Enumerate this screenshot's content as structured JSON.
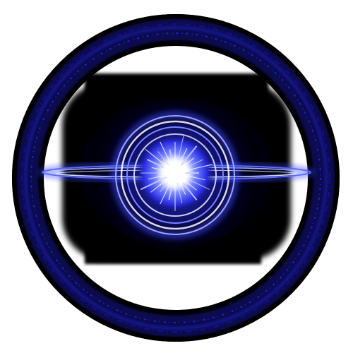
{
  "scene": {
    "subject": "glowing-blue-energy-orb",
    "background_color": "#ffffff",
    "colors": {
      "outer_ring": "#05052a",
      "ring_glow": "#1a1acc",
      "rune_band": "#2a2aff",
      "halo_dark": "#000008",
      "core_blue": "#2f3bff",
      "core_light": "#c9d2ff",
      "core_white": "#ffffff",
      "orbit_ring": "#5a6cff"
    }
  }
}
